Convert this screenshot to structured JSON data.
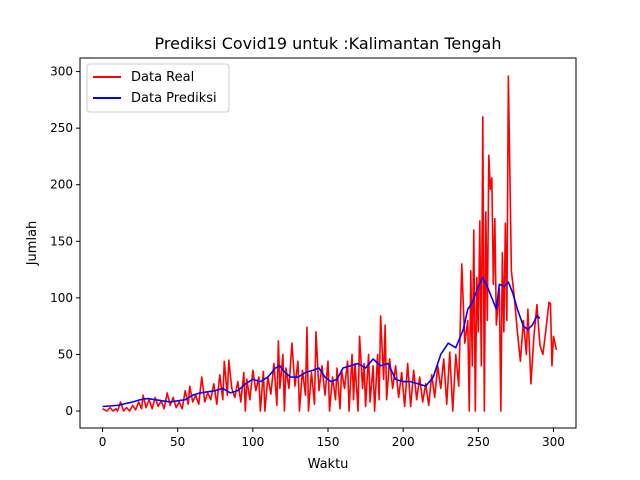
{
  "chart_data": {
    "type": "line",
    "title": "Prediksi Covid19 untuk :Kalimantan Tengah",
    "xlabel": "Waktu",
    "ylabel": "Jumlah",
    "xlim": [
      -15,
      315
    ],
    "ylim": [
      -15,
      312
    ],
    "x_ticks": [
      0,
      50,
      100,
      150,
      200,
      250,
      300
    ],
    "y_ticks": [
      0,
      50,
      100,
      150,
      200,
      250,
      300
    ],
    "grid": false,
    "legend_position": "top-left",
    "series": [
      {
        "name": "Data Real",
        "color": "#ff0000",
        "points": [
          [
            0,
            2
          ],
          [
            3,
            0
          ],
          [
            5,
            3
          ],
          [
            7,
            0
          ],
          [
            9,
            2
          ],
          [
            10,
            0
          ],
          [
            12,
            8
          ],
          [
            14,
            0
          ],
          [
            16,
            3
          ],
          [
            18,
            0
          ],
          [
            20,
            5
          ],
          [
            22,
            1
          ],
          [
            24,
            8
          ],
          [
            26,
            2
          ],
          [
            27,
            14
          ],
          [
            29,
            3
          ],
          [
            31,
            10
          ],
          [
            33,
            2
          ],
          [
            35,
            12
          ],
          [
            37,
            4
          ],
          [
            39,
            9
          ],
          [
            41,
            2
          ],
          [
            43,
            16
          ],
          [
            45,
            5
          ],
          [
            47,
            12
          ],
          [
            49,
            3
          ],
          [
            51,
            8
          ],
          [
            53,
            2
          ],
          [
            55,
            18
          ],
          [
            57,
            6
          ],
          [
            58,
            22
          ],
          [
            60,
            8
          ],
          [
            62,
            14
          ],
          [
            64,
            6
          ],
          [
            66,
            30
          ],
          [
            68,
            8
          ],
          [
            70,
            16
          ],
          [
            72,
            10
          ],
          [
            74,
            24
          ],
          [
            76,
            6
          ],
          [
            78,
            32
          ],
          [
            80,
            10
          ],
          [
            81,
            44
          ],
          [
            83,
            14
          ],
          [
            84,
            45
          ],
          [
            86,
            20
          ],
          [
            88,
            12
          ],
          [
            90,
            26
          ],
          [
            92,
            8
          ],
          [
            94,
            34
          ],
          [
            95,
            0
          ],
          [
            96,
            28
          ],
          [
            98,
            10
          ],
          [
            100,
            36
          ],
          [
            102,
            18
          ],
          [
            104,
            30
          ],
          [
            105,
            0
          ],
          [
            107,
            35
          ],
          [
            108,
            0
          ],
          [
            110,
            30
          ],
          [
            112,
            15
          ],
          [
            114,
            42
          ],
          [
            116,
            5
          ],
          [
            117,
            62
          ],
          [
            118,
            20
          ],
          [
            120,
            50
          ],
          [
            121,
            0
          ],
          [
            122,
            38
          ],
          [
            124,
            20
          ],
          [
            126,
            60
          ],
          [
            128,
            22
          ],
          [
            130,
            44
          ],
          [
            131,
            0
          ],
          [
            133,
            36
          ],
          [
            135,
            14
          ],
          [
            136,
            74
          ],
          [
            137,
            0
          ],
          [
            139,
            34
          ],
          [
            141,
            6
          ],
          [
            142,
            70
          ],
          [
            144,
            18
          ],
          [
            146,
            40
          ],
          [
            148,
            14
          ],
          [
            150,
            44
          ],
          [
            151,
            0
          ],
          [
            153,
            30
          ],
          [
            155,
            10
          ],
          [
            156,
            38
          ],
          [
            158,
            2
          ],
          [
            159,
            36
          ],
          [
            161,
            20
          ],
          [
            163,
            44
          ],
          [
            164,
            0
          ],
          [
            166,
            50
          ],
          [
            167,
            10
          ],
          [
            168,
            42
          ],
          [
            170,
            0
          ],
          [
            171,
            66
          ],
          [
            173,
            20
          ],
          [
            174,
            42
          ],
          [
            175,
            4
          ],
          [
            177,
            50
          ],
          [
            178,
            8
          ],
          [
            180,
            40
          ],
          [
            181,
            0
          ],
          [
            183,
            50
          ],
          [
            184,
            10
          ],
          [
            185,
            84
          ],
          [
            187,
            28
          ],
          [
            188,
            76
          ],
          [
            189,
            10
          ],
          [
            191,
            46
          ],
          [
            193,
            20
          ],
          [
            195,
            40
          ],
          [
            197,
            12
          ],
          [
            199,
            34
          ],
          [
            201,
            4
          ],
          [
            203,
            42
          ],
          [
            205,
            4
          ],
          [
            207,
            36
          ],
          [
            209,
            10
          ],
          [
            211,
            30
          ],
          [
            213,
            8
          ],
          [
            215,
            24
          ],
          [
            217,
            5
          ],
          [
            219,
            32
          ],
          [
            221,
            12
          ],
          [
            223,
            40
          ],
          [
            225,
            20
          ],
          [
            227,
            46
          ],
          [
            229,
            6
          ],
          [
            231,
            52
          ],
          [
            233,
            0
          ],
          [
            235,
            50
          ],
          [
            237,
            22
          ],
          [
            239,
            130
          ],
          [
            241,
            60
          ],
          [
            243,
            80
          ],
          [
            244,
            0
          ],
          [
            245,
            124
          ],
          [
            246,
            40
          ],
          [
            247,
            160
          ],
          [
            248,
            0
          ],
          [
            249,
            118
          ],
          [
            250,
            70
          ],
          [
            251,
            168
          ],
          [
            252,
            40
          ],
          [
            253,
            260
          ],
          [
            254,
            0
          ],
          [
            255,
            176
          ],
          [
            256,
            80
          ],
          [
            257,
            226
          ],
          [
            258,
            196
          ],
          [
            259,
            206
          ],
          [
            260,
            112
          ],
          [
            261,
            170
          ],
          [
            262,
            76
          ],
          [
            264,
            108
          ],
          [
            265,
            0
          ],
          [
            266,
            140
          ],
          [
            267,
            70
          ],
          [
            268,
            166
          ],
          [
            269,
            80
          ],
          [
            270,
            296
          ],
          [
            271,
            210
          ],
          [
            272,
            124
          ],
          [
            274,
            100
          ],
          [
            276,
            70
          ],
          [
            278,
            44
          ],
          [
            280,
            80
          ],
          [
            282,
            50
          ],
          [
            283,
            90
          ],
          [
            285,
            24
          ],
          [
            287,
            66
          ],
          [
            289,
            94
          ],
          [
            291,
            58
          ],
          [
            293,
            50
          ],
          [
            295,
            72
          ],
          [
            297,
            96
          ],
          [
            298,
            95
          ],
          [
            299,
            40
          ],
          [
            300,
            66
          ],
          [
            302,
            54
          ]
        ]
      },
      {
        "name": "Data Prediksi",
        "color": "#0000ff",
        "points": [
          [
            0,
            4
          ],
          [
            10,
            5
          ],
          [
            20,
            8
          ],
          [
            25,
            10
          ],
          [
            30,
            11
          ],
          [
            35,
            10
          ],
          [
            40,
            9
          ],
          [
            45,
            8
          ],
          [
            50,
            9
          ],
          [
            55,
            10
          ],
          [
            60,
            14
          ],
          [
            65,
            16
          ],
          [
            70,
            17
          ],
          [
            75,
            18
          ],
          [
            80,
            20
          ],
          [
            85,
            16
          ],
          [
            90,
            18
          ],
          [
            95,
            24
          ],
          [
            100,
            28
          ],
          [
            105,
            26
          ],
          [
            110,
            30
          ],
          [
            115,
            38
          ],
          [
            118,
            40
          ],
          [
            120,
            36
          ],
          [
            125,
            30
          ],
          [
            130,
            30
          ],
          [
            135,
            34
          ],
          [
            140,
            36
          ],
          [
            144,
            38
          ],
          [
            148,
            30
          ],
          [
            152,
            26
          ],
          [
            156,
            28
          ],
          [
            160,
            38
          ],
          [
            165,
            40
          ],
          [
            170,
            42
          ],
          [
            175,
            38
          ],
          [
            180,
            46
          ],
          [
            185,
            40
          ],
          [
            190,
            42
          ],
          [
            195,
            28
          ],
          [
            200,
            26
          ],
          [
            205,
            26
          ],
          [
            210,
            24
          ],
          [
            215,
            22
          ],
          [
            220,
            30
          ],
          [
            225,
            50
          ],
          [
            230,
            60
          ],
          [
            235,
            56
          ],
          [
            240,
            72
          ],
          [
            243,
            90
          ],
          [
            246,
            96
          ],
          [
            250,
            110
          ],
          [
            253,
            118
          ],
          [
            256,
            110
          ],
          [
            259,
            100
          ],
          [
            262,
            90
          ],
          [
            264,
            112
          ],
          [
            267,
            110
          ],
          [
            270,
            114
          ],
          [
            273,
            104
          ],
          [
            276,
            90
          ],
          [
            280,
            75
          ],
          [
            283,
            72
          ],
          [
            286,
            76
          ],
          [
            289,
            84
          ],
          [
            291,
            82
          ]
        ]
      }
    ]
  }
}
